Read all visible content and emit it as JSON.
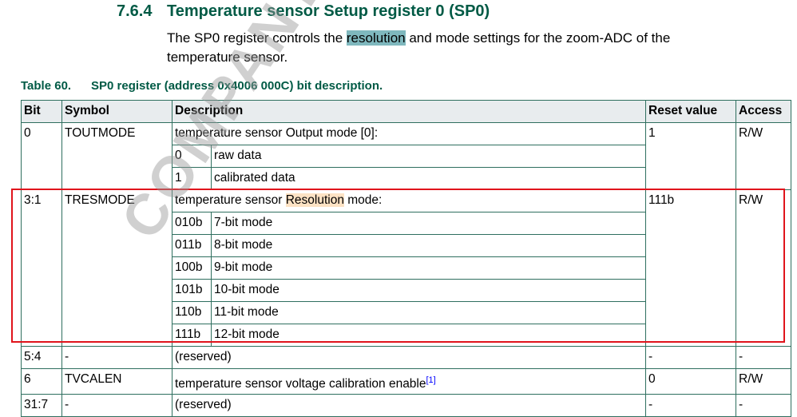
{
  "section": {
    "number": "7.6.4",
    "title": "Temperature sensor Setup register 0 (SP0)"
  },
  "intro": {
    "before": "The SP0 register controls the ",
    "highlight": "resolution",
    "after": " and mode settings for the zoom-ADC of the temperature sensor."
  },
  "caption": {
    "number": "Table 60.",
    "title": "SP0 register (address 0x4006 000C) bit description."
  },
  "headers": [
    "Bit",
    "Symbol",
    "Description",
    "Reset value",
    "Access"
  ],
  "rows": {
    "toutmode": {
      "bit": "0",
      "symbol": "TOUTMODE",
      "desc": "temperature sensor Output mode [0]:",
      "reset": "1",
      "access": "R/W",
      "values": [
        [
          "0",
          "raw data"
        ],
        [
          "1",
          "calibrated data"
        ]
      ]
    },
    "tresmode": {
      "bit": "3:1",
      "symbol": "TRESMODE",
      "desc_before": "temperature sensor ",
      "desc_highlight": "Resolution",
      "desc_after": " mode:",
      "reset": "111b",
      "access": "R/W",
      "values": [
        [
          "010b",
          "7-bit mode"
        ],
        [
          "011b",
          "8-bit mode"
        ],
        [
          "100b",
          "9-bit mode"
        ],
        [
          "101b",
          "10-bit mode"
        ],
        [
          "110b",
          "11-bit mode"
        ],
        [
          "111b",
          "12-bit mode"
        ]
      ]
    },
    "r54": {
      "bit": "5:4",
      "symbol": "-",
      "desc": "(reserved)",
      "reset": "-",
      "access": "-"
    },
    "tvcalen": {
      "bit": "6",
      "symbol": "TVCALEN",
      "desc": "temperature sensor voltage calibration enable",
      "footnote": "[1]",
      "reset": "0",
      "access": "R/W"
    },
    "r317": {
      "bit": "31:7",
      "symbol": "-",
      "desc": "(reserved)",
      "reset": "-",
      "access": "-"
    }
  },
  "watermark": "COMPANY PUBLIC"
}
